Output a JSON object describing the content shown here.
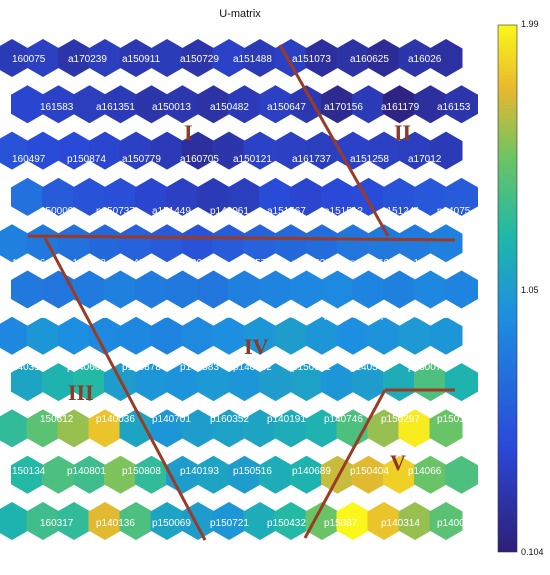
{
  "chart_data": {
    "type": "heatmap",
    "title": "U-matrix",
    "colorbar": {
      "min": 0.104,
      "mid": 1.05,
      "max": 1.99,
      "ticks": [
        "1.99",
        "1.05",
        "0.104"
      ]
    },
    "grid": {
      "rows": 11,
      "cols": 15
    },
    "node_labels": [
      [
        "160075",
        "a170239",
        "a150911",
        "a150729",
        "a151488",
        "a151073",
        "a160625",
        "a16026"
      ],
      [
        "161583",
        "a161351",
        "a150013",
        "a150482",
        "a150647",
        "a170156",
        "a161179",
        "a16153"
      ],
      [
        "160497",
        "p150874",
        "a150779",
        "a160705",
        "a150121",
        "a161737",
        "a151258",
        "a17012"
      ],
      [
        "150009",
        "p150737",
        "a151449",
        "p140061",
        "a151567",
        "a151512",
        "a151241",
        "p14075"
      ],
      [
        "140796",
        "p150298",
        "p140676",
        "p160140",
        "p150578",
        "p150437",
        "p150766",
        "p15003"
      ],
      [
        "140911",
        "p140637",
        "p160141",
        "p150333",
        "p150683",
        "p160531",
        "p140778",
        "p15040"
      ],
      [
        "140319",
        "p140661",
        "p150878",
        "p140383",
        "p140062",
        "p150901",
        "p140542",
        "p16007"
      ],
      [
        "150612",
        "p140036",
        "p140701",
        "p160352",
        "p140191",
        "p140746",
        "p150297",
        "p15012"
      ],
      [
        "150134",
        "p140801",
        "p150808",
        "p140193",
        "p150516",
        "p140689",
        "p150404",
        "p14066"
      ],
      [
        "160317",
        "p140136",
        "p150069",
        "p150721",
        "p150432",
        "p15087",
        "p140314",
        "p14007"
      ]
    ],
    "clusters": [
      "I",
      "II",
      "III",
      "IV",
      "V"
    ],
    "values": [
      [
        0.35,
        0.4,
        0.3,
        0.38,
        0.33,
        0.36,
        0.3,
        0.42,
        0.35,
        0.4,
        0.25,
        0.28,
        0.22,
        0.3,
        0.26
      ],
      [
        0.45,
        0.42,
        0.38,
        0.35,
        0.3,
        0.32,
        0.28,
        0.35,
        0.4,
        0.33,
        0.2,
        0.35,
        0.15,
        0.25,
        0.3
      ],
      [
        0.55,
        0.5,
        0.48,
        0.45,
        0.4,
        0.35,
        0.25,
        0.3,
        0.42,
        0.4,
        0.38,
        0.42,
        0.4,
        0.38,
        0.35
      ],
      [
        0.75,
        0.6,
        0.55,
        0.52,
        0.45,
        0.4,
        0.35,
        0.38,
        0.5,
        0.45,
        0.48,
        0.5,
        0.55,
        0.58,
        0.6
      ],
      [
        0.85,
        0.8,
        0.75,
        0.7,
        0.65,
        0.6,
        0.55,
        0.6,
        0.65,
        0.7,
        0.72,
        0.78,
        0.8,
        0.82,
        0.85
      ],
      [
        0.8,
        0.78,
        0.82,
        0.85,
        0.82,
        0.8,
        0.78,
        0.85,
        0.88,
        0.9,
        0.92,
        0.88,
        0.85,
        0.9,
        0.88
      ],
      [
        0.9,
        1.0,
        0.95,
        0.92,
        0.9,
        0.88,
        0.92,
        0.95,
        1.0,
        1.05,
        1.0,
        0.95,
        0.98,
        1.02,
        1.0
      ],
      [
        1.1,
        1.2,
        1.25,
        1.05,
        1.0,
        0.98,
        1.02,
        1.0,
        1.05,
        1.08,
        1.0,
        1.05,
        1.15,
        1.4,
        1.2
      ],
      [
        1.3,
        1.45,
        1.6,
        1.8,
        1.1,
        1.0,
        1.05,
        1.08,
        1.1,
        1.15,
        1.2,
        1.4,
        1.6,
        1.95,
        1.5
      ],
      [
        1.25,
        1.4,
        1.35,
        1.55,
        1.3,
        1.05,
        1.1,
        1.05,
        1.15,
        1.2,
        1.7,
        1.75,
        1.85,
        1.5,
        1.4
      ],
      [
        1.2,
        1.35,
        1.3,
        1.75,
        1.4,
        1.1,
        1.05,
        1.0,
        1.15,
        1.25,
        1.5,
        1.99,
        1.8,
        1.6,
        1.45
      ]
    ]
  }
}
